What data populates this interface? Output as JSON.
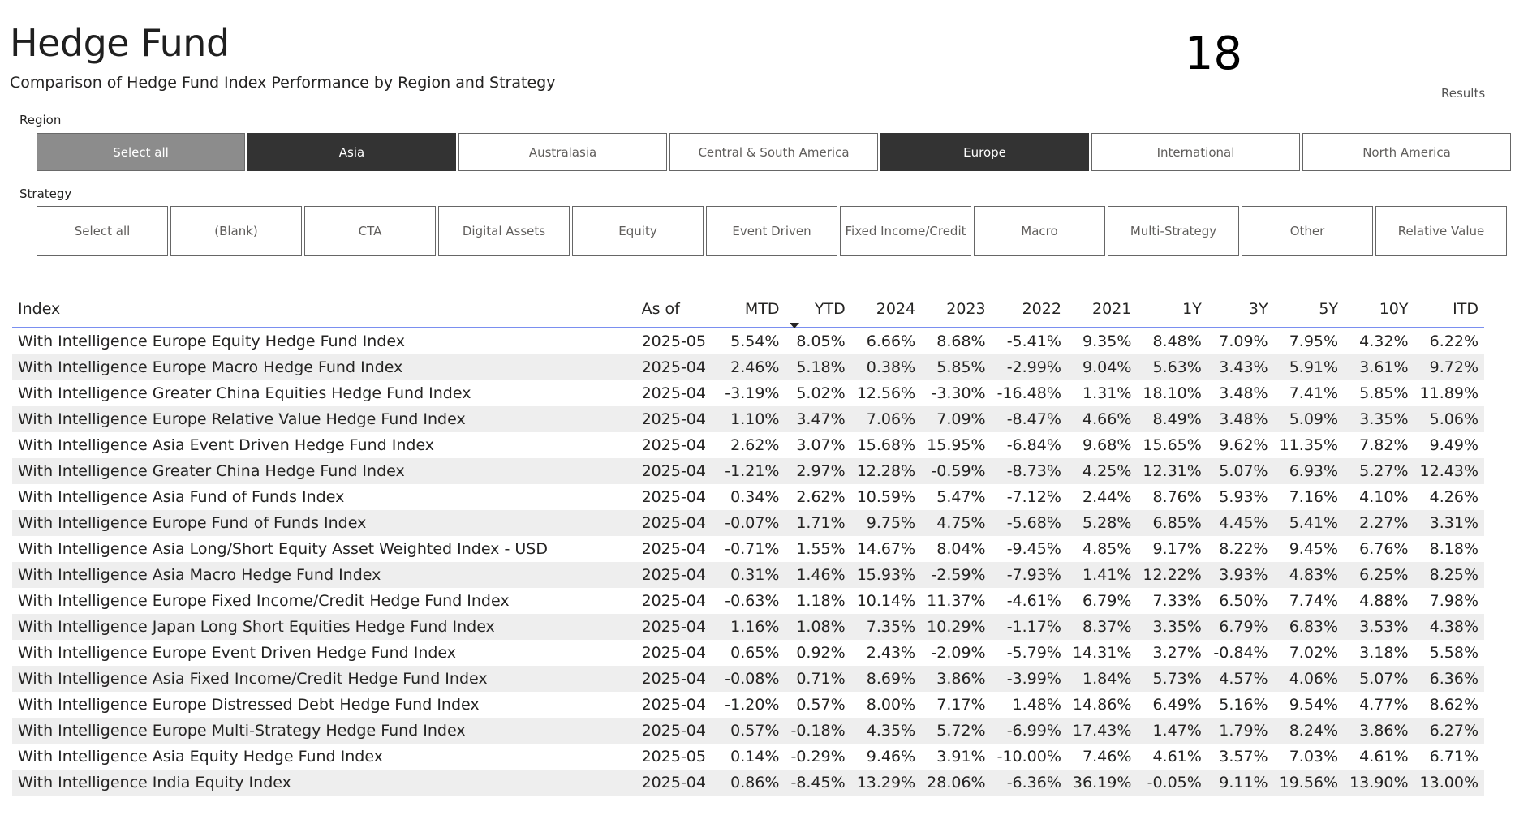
{
  "header": {
    "title": "Hedge Fund",
    "subtitle": "Comparison of Hedge Fund Index Performance by Region and Strategy"
  },
  "results": {
    "count": "18",
    "label": "Results"
  },
  "region": {
    "label": "Region",
    "buttons": [
      {
        "label": "Select all",
        "state": "partial"
      },
      {
        "label": "Asia",
        "state": "selected"
      },
      {
        "label": "Australasia",
        "state": "none"
      },
      {
        "label": "Central & South America",
        "state": "none"
      },
      {
        "label": "Europe",
        "state": "selected"
      },
      {
        "label": "International",
        "state": "none"
      },
      {
        "label": "North America",
        "state": "none"
      }
    ]
  },
  "strategy": {
    "label": "Strategy",
    "buttons": [
      {
        "label": "Select all"
      },
      {
        "label": "(Blank)"
      },
      {
        "label": "CTA"
      },
      {
        "label": "Digital Assets"
      },
      {
        "label": "Equity"
      },
      {
        "label": "Event Driven"
      },
      {
        "label": "Fixed Income/Credit"
      },
      {
        "label": "Macro"
      },
      {
        "label": "Multi-Strategy"
      },
      {
        "label": "Other"
      },
      {
        "label": "Relative Value"
      }
    ]
  },
  "table": {
    "columns": [
      "Index",
      "As of",
      "MTD",
      "YTD",
      "2024",
      "2023",
      "2022",
      "2021",
      "1Y",
      "3Y",
      "5Y",
      "10Y",
      "ITD"
    ],
    "sorted_column": "YTD",
    "rows": [
      [
        "With Intelligence Europe Equity Hedge Fund Index",
        "2025-05",
        "5.54%",
        "8.05%",
        "6.66%",
        "8.68%",
        "-5.41%",
        "9.35%",
        "8.48%",
        "7.09%",
        "7.95%",
        "4.32%",
        "6.22%"
      ],
      [
        "With Intelligence Europe Macro Hedge Fund Index",
        "2025-04",
        "2.46%",
        "5.18%",
        "0.38%",
        "5.85%",
        "-2.99%",
        "9.04%",
        "5.63%",
        "3.43%",
        "5.91%",
        "3.61%",
        "9.72%"
      ],
      [
        "With Intelligence Greater China Equities Hedge Fund Index",
        "2025-04",
        "-3.19%",
        "5.02%",
        "12.56%",
        "-3.30%",
        "-16.48%",
        "1.31%",
        "18.10%",
        "3.48%",
        "7.41%",
        "5.85%",
        "11.89%"
      ],
      [
        "With Intelligence Europe Relative Value Hedge Fund Index",
        "2025-04",
        "1.10%",
        "3.47%",
        "7.06%",
        "7.09%",
        "-8.47%",
        "4.66%",
        "8.49%",
        "3.48%",
        "5.09%",
        "3.35%",
        "5.06%"
      ],
      [
        "With Intelligence Asia Event Driven Hedge Fund Index",
        "2025-04",
        "2.62%",
        "3.07%",
        "15.68%",
        "15.95%",
        "-6.84%",
        "9.68%",
        "15.65%",
        "9.62%",
        "11.35%",
        "7.82%",
        "9.49%"
      ],
      [
        "With Intelligence Greater China Hedge Fund Index",
        "2025-04",
        "-1.21%",
        "2.97%",
        "12.28%",
        "-0.59%",
        "-8.73%",
        "4.25%",
        "12.31%",
        "5.07%",
        "6.93%",
        "5.27%",
        "12.43%"
      ],
      [
        "With Intelligence Asia Fund of Funds Index",
        "2025-04",
        "0.34%",
        "2.62%",
        "10.59%",
        "5.47%",
        "-7.12%",
        "2.44%",
        "8.76%",
        "5.93%",
        "7.16%",
        "4.10%",
        "4.26%"
      ],
      [
        "With Intelligence Europe Fund of Funds Index",
        "2025-04",
        "-0.07%",
        "1.71%",
        "9.75%",
        "4.75%",
        "-5.68%",
        "5.28%",
        "6.85%",
        "4.45%",
        "5.41%",
        "2.27%",
        "3.31%"
      ],
      [
        "With Intelligence Asia Long/Short Equity Asset Weighted Index - USD",
        "2025-04",
        "-0.71%",
        "1.55%",
        "14.67%",
        "8.04%",
        "-9.45%",
        "4.85%",
        "9.17%",
        "8.22%",
        "9.45%",
        "6.76%",
        "8.18%"
      ],
      [
        "With Intelligence Asia Macro Hedge Fund Index",
        "2025-04",
        "0.31%",
        "1.46%",
        "15.93%",
        "-2.59%",
        "-7.93%",
        "1.41%",
        "12.22%",
        "3.93%",
        "4.83%",
        "6.25%",
        "8.25%"
      ],
      [
        "With Intelligence Europe Fixed Income/Credit Hedge Fund Index",
        "2025-04",
        "-0.63%",
        "1.18%",
        "10.14%",
        "11.37%",
        "-4.61%",
        "6.79%",
        "7.33%",
        "6.50%",
        "7.74%",
        "4.88%",
        "7.98%"
      ],
      [
        "With Intelligence Japan Long Short Equities Hedge Fund Index",
        "2025-04",
        "1.16%",
        "1.08%",
        "7.35%",
        "10.29%",
        "-1.17%",
        "8.37%",
        "3.35%",
        "6.79%",
        "6.83%",
        "3.53%",
        "4.38%"
      ],
      [
        "With Intelligence Europe Event Driven Hedge Fund Index",
        "2025-04",
        "0.65%",
        "0.92%",
        "2.43%",
        "-2.09%",
        "-5.79%",
        "14.31%",
        "3.27%",
        "-0.84%",
        "7.02%",
        "3.18%",
        "5.58%"
      ],
      [
        "With Intelligence Asia Fixed Income/Credit Hedge Fund Index",
        "2025-04",
        "-0.08%",
        "0.71%",
        "8.69%",
        "3.86%",
        "-3.99%",
        "1.84%",
        "5.73%",
        "4.57%",
        "4.06%",
        "5.07%",
        "6.36%"
      ],
      [
        "With Intelligence Europe Distressed Debt Hedge Fund Index",
        "2025-04",
        "-1.20%",
        "0.57%",
        "8.00%",
        "7.17%",
        "1.48%",
        "14.86%",
        "6.49%",
        "5.16%",
        "9.54%",
        "4.77%",
        "8.62%"
      ],
      [
        "With Intelligence Europe Multi-Strategy Hedge Fund Index",
        "2025-04",
        "0.57%",
        "-0.18%",
        "4.35%",
        "5.72%",
        "-6.99%",
        "17.43%",
        "1.47%",
        "1.79%",
        "8.24%",
        "3.86%",
        "6.27%"
      ],
      [
        "With Intelligence Asia Equity Hedge Fund Index",
        "2025-05",
        "0.14%",
        "-0.29%",
        "9.46%",
        "3.91%",
        "-10.00%",
        "7.46%",
        "4.61%",
        "3.57%",
        "7.03%",
        "4.61%",
        "6.71%"
      ],
      [
        "With Intelligence India Equity Index",
        "2025-04",
        "0.86%",
        "-8.45%",
        "13.29%",
        "28.06%",
        "-6.36%",
        "36.19%",
        "-0.05%",
        "9.11%",
        "19.56%",
        "13.90%",
        "13.00%"
      ]
    ]
  }
}
